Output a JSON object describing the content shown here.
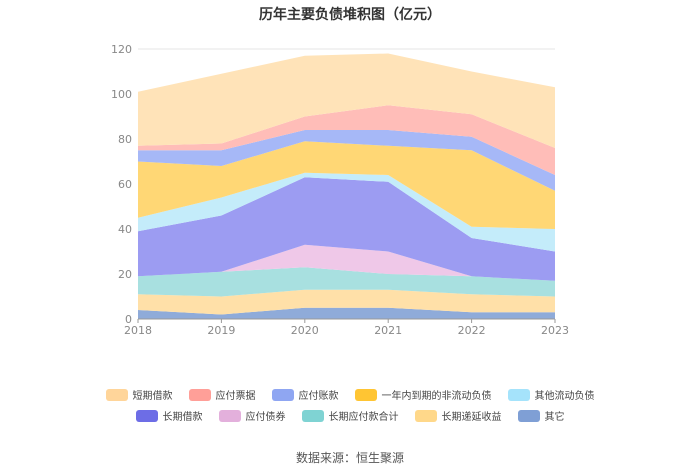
{
  "chart_data": {
    "type": "area",
    "title": "历年主要负债堆积图（亿元）",
    "categories": [
      "2018",
      "2019",
      "2020",
      "2021",
      "2022",
      "2023"
    ],
    "ylim": [
      0,
      120
    ],
    "yticks": [
      "0",
      "20",
      "40",
      "60",
      "80",
      "100",
      "120"
    ],
    "grid": true,
    "legend_position": "bottom",
    "series": [
      {
        "name": "其它",
        "color": "#8fabd9",
        "values": [
          4,
          2,
          5,
          5,
          3,
          3
        ]
      },
      {
        "name": "长期递延收益",
        "color": "#ffe0a8",
        "values": [
          7,
          8,
          8,
          8,
          8,
          7
        ]
      },
      {
        "name": "长期应付款合计",
        "color": "#a8e0e0",
        "values": [
          8,
          11,
          10,
          7,
          8,
          7
        ]
      },
      {
        "name": "应付债券",
        "color": "#efc8e8",
        "values": [
          0,
          0,
          10,
          10,
          0,
          0
        ]
      },
      {
        "name": "长期借款",
        "color": "#9c9cf2",
        "values": [
          20,
          25,
          30,
          31,
          17,
          13
        ]
      },
      {
        "name": "其他流动负债",
        "color": "#c4ecfa",
        "values": [
          6,
          8,
          2,
          3,
          5,
          10
        ]
      },
      {
        "name": "一年内到期的非流动负债",
        "color": "#ffd775",
        "values": [
          25,
          14,
          14,
          13,
          34,
          17
        ]
      },
      {
        "name": "应付账款",
        "color": "#a6b8f7",
        "values": [
          5,
          7,
          5,
          7,
          6,
          7
        ]
      },
      {
        "name": "应付票据",
        "color": "#ffbdb8",
        "values": [
          2,
          3,
          6,
          11,
          10,
          12
        ]
      },
      {
        "name": "短期借款",
        "color": "#ffe3b8",
        "values": [
          24,
          31,
          27,
          23,
          19,
          27
        ]
      }
    ],
    "legend_rows": [
      [
        "短期借款",
        "应付票据",
        "应付账款",
        "一年内到期的非流动负债",
        "其他流动负债"
      ],
      [
        "长期借款",
        "应付债券",
        "长期应付款合计",
        "长期递延收益",
        "其它"
      ]
    ],
    "legend_colors": {
      "短期借款": "#ffd59a",
      "应付票据": "#ff9f98",
      "应付账款": "#8fa6f2",
      "一年内到期的非流动负债": "#ffc533",
      "其他流动负债": "#a5e3fb",
      "长期借款": "#6d6de6",
      "应付债券": "#e3b0dc",
      "长期应付款合计": "#7fd3d3",
      "长期递延收益": "#ffd88a",
      "其它": "#7f9fd5"
    }
  },
  "source": "数据来源：恒生聚源"
}
